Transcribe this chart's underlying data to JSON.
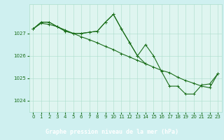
{
  "background_color": "#cff0f0",
  "plot_bg_color": "#dff5f0",
  "grid_color": "#aaddcc",
  "line_color": "#1a6e1a",
  "marker_color": "#1a6e1a",
  "series1": {
    "x": [
      0,
      1,
      2,
      3,
      4,
      5,
      6,
      7,
      8,
      9,
      10,
      11,
      12,
      13,
      14,
      15,
      16,
      17,
      18,
      19,
      20,
      21,
      22,
      23
    ],
    "y": [
      1027.2,
      1027.5,
      1027.5,
      1027.3,
      1027.1,
      1027.0,
      1027.0,
      1027.05,
      1027.1,
      1027.5,
      1027.85,
      1027.2,
      1026.6,
      1026.0,
      1026.5,
      1026.0,
      1025.3,
      1024.65,
      1024.65,
      1024.3,
      1024.3,
      1024.7,
      1024.75,
      1025.2
    ]
  },
  "series2": {
    "x": [
      0,
      1,
      2,
      3,
      4,
      5,
      6,
      7,
      8,
      9,
      10,
      11,
      12,
      13,
      14,
      15,
      16,
      17,
      18,
      19,
      20,
      21,
      22,
      23
    ],
    "y": [
      1027.2,
      1027.45,
      1027.4,
      1027.3,
      1027.15,
      1027.0,
      1026.85,
      1026.72,
      1026.58,
      1026.42,
      1026.28,
      1026.1,
      1025.95,
      1025.8,
      1025.65,
      1025.5,
      1025.35,
      1025.25,
      1025.05,
      1024.9,
      1024.78,
      1024.65,
      1024.58,
      1025.2
    ]
  },
  "series3": {
    "x": [
      0,
      1,
      2,
      3,
      4,
      5,
      6,
      7,
      8,
      9,
      10,
      11,
      12,
      13,
      14
    ],
    "y": [
      1027.2,
      1027.5,
      1027.5,
      1027.3,
      1027.1,
      1027.0,
      1027.0,
      1027.05,
      1027.1,
      1027.5,
      1027.85,
      1027.2,
      1026.6,
      1026.0,
      1025.65
    ]
  },
  "xlabel": "Graphe pression niveau de la mer (hPa)",
  "xlabel_bg": "#2a7a2a",
  "xtick_labels": [
    "0",
    "1",
    "2",
    "3",
    "4",
    "5",
    "6",
    "7",
    "8",
    "9",
    "10",
    "11",
    "12",
    "13",
    "14",
    "15",
    "16",
    "17",
    "18",
    "19",
    "20",
    "21",
    "22",
    "23"
  ],
  "xticks": [
    0,
    1,
    2,
    3,
    4,
    5,
    6,
    7,
    8,
    9,
    10,
    11,
    12,
    13,
    14,
    15,
    16,
    17,
    18,
    19,
    20,
    21,
    22,
    23
  ],
  "yticks": [
    1024,
    1025,
    1026,
    1027
  ],
  "ylim": [
    1023.5,
    1028.3
  ],
  "xlim": [
    -0.5,
    23.5
  ],
  "tick_color": "#1a6e1a",
  "tick_fontsize": 5.0,
  "xlabel_fontsize": 6.0,
  "linewidth": 0.8,
  "markersize": 3.5
}
